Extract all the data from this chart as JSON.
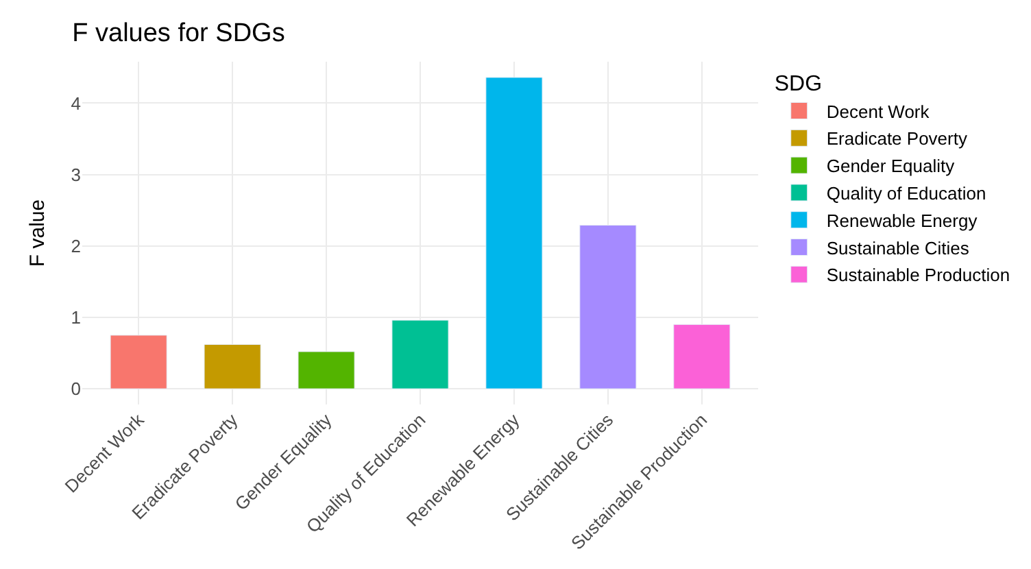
{
  "chart_data": {
    "type": "bar",
    "title": "F values for SDGs",
    "ylabel": "F value",
    "legend_title": "SDG",
    "categories": [
      "Decent Work",
      "Eradicate Poverty",
      "Gender Equality",
      "Quality of Education",
      "Renewable Energy",
      "Sustainable Cities",
      "Sustainable Production"
    ],
    "series": [
      {
        "name": "Decent Work",
        "color": "#f8766d",
        "values": [
          0.75,
          null,
          null,
          null,
          null,
          null,
          null
        ]
      },
      {
        "name": "Eradicate Poverty",
        "color": "#c49a00",
        "values": [
          null,
          0.62,
          null,
          null,
          null,
          null,
          null
        ]
      },
      {
        "name": "Gender Equality",
        "color": "#53b400",
        "values": [
          null,
          null,
          0.52,
          null,
          null,
          null,
          null
        ]
      },
      {
        "name": "Quality of Education",
        "color": "#00c094",
        "values": [
          null,
          null,
          null,
          0.96,
          null,
          null,
          null
        ]
      },
      {
        "name": "Renewable Energy",
        "color": "#00b6eb",
        "values": [
          null,
          null,
          null,
          null,
          4.36,
          null,
          null
        ]
      },
      {
        "name": "Sustainable Cities",
        "color": "#a58aff",
        "values": [
          null,
          null,
          null,
          null,
          null,
          2.29,
          null
        ]
      },
      {
        "name": "Sustainable Production",
        "color": "#fb61d7",
        "values": [
          null,
          null,
          null,
          null,
          null,
          null,
          0.9
        ]
      }
    ],
    "ylim": [
      -0.22,
      4.58
    ],
    "yticks": [
      0,
      1,
      2,
      3,
      4
    ],
    "grid": true,
    "legend": "right"
  }
}
